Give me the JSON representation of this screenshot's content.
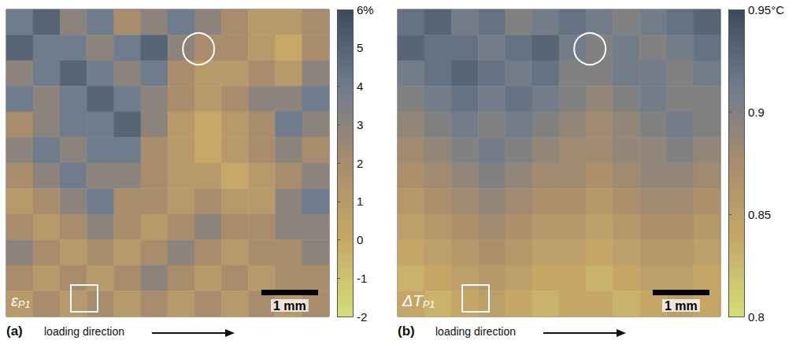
{
  "chart_data": [
    {
      "type": "heatmap",
      "panel": "(a)",
      "symbol": "ε",
      "subscript": "P1",
      "scale_bar": "1 mm",
      "x_label": "loading direction",
      "cells": [
        [
          4,
          5,
          3,
          4,
          2,
          3,
          4,
          3,
          2,
          1,
          1,
          2
        ],
        [
          5,
          4,
          4,
          3,
          4,
          5,
          3,
          2,
          2,
          1,
          0,
          2
        ],
        [
          3,
          4,
          5,
          4,
          3,
          4,
          2,
          1,
          1,
          2,
          1,
          3
        ],
        [
          4,
          3,
          4,
          5,
          4,
          3,
          2,
          1,
          2,
          3,
          3,
          4
        ],
        [
          2,
          3,
          4,
          4,
          5,
          3,
          1,
          0,
          1,
          2,
          4,
          3
        ],
        [
          3,
          4,
          3,
          4,
          4,
          2,
          1,
          0,
          1,
          2,
          3,
          2
        ],
        [
          2,
          3,
          4,
          3,
          3,
          2,
          1,
          1,
          0,
          1,
          2,
          3
        ],
        [
          1,
          2,
          3,
          4,
          2,
          2,
          1,
          2,
          1,
          1,
          3,
          4
        ],
        [
          2,
          1,
          2,
          3,
          2,
          1,
          2,
          3,
          2,
          2,
          3,
          3
        ],
        [
          3,
          2,
          1,
          2,
          1,
          2,
          3,
          2,
          1,
          2,
          2,
          3
        ],
        [
          2,
          1,
          2,
          1,
          2,
          3,
          2,
          1,
          2,
          1,
          2,
          2
        ],
        [
          1,
          2,
          1,
          2,
          1,
          2,
          1,
          2,
          1,
          2,
          1,
          2
        ]
      ],
      "colorbar": {
        "range": [
          -2,
          6
        ],
        "ticks": [
          {
            "value": 6,
            "label": "6%"
          },
          5,
          4,
          3,
          2,
          1,
          0,
          -1,
          -2
        ]
      }
    },
    {
      "type": "heatmap",
      "panel": "(b)",
      "symbol": "ΔT",
      "subscript": "P1",
      "scale_bar": "1 mm",
      "x_label": "loading direction",
      "cells": [
        [
          0.92,
          0.93,
          0.91,
          0.92,
          0.9,
          0.91,
          0.92,
          0.91,
          0.9,
          0.91,
          0.92,
          0.93
        ],
        [
          0.93,
          0.92,
          0.92,
          0.91,
          0.92,
          0.93,
          0.91,
          0.9,
          0.91,
          0.9,
          0.91,
          0.92
        ],
        [
          0.91,
          0.92,
          0.93,
          0.92,
          0.91,
          0.92,
          0.9,
          0.9,
          0.91,
          0.91,
          0.9,
          0.91
        ],
        [
          0.9,
          0.91,
          0.92,
          0.91,
          0.92,
          0.91,
          0.9,
          0.89,
          0.9,
          0.91,
          0.9,
          0.9
        ],
        [
          0.89,
          0.9,
          0.91,
          0.9,
          0.91,
          0.9,
          0.89,
          0.88,
          0.89,
          0.9,
          0.91,
          0.9
        ],
        [
          0.88,
          0.89,
          0.9,
          0.91,
          0.9,
          0.89,
          0.88,
          0.88,
          0.89,
          0.89,
          0.9,
          0.89
        ],
        [
          0.87,
          0.88,
          0.89,
          0.9,
          0.89,
          0.88,
          0.88,
          0.87,
          0.88,
          0.89,
          0.89,
          0.88
        ],
        [
          0.86,
          0.87,
          0.88,
          0.89,
          0.88,
          0.87,
          0.87,
          0.86,
          0.87,
          0.88,
          0.88,
          0.87
        ],
        [
          0.85,
          0.86,
          0.87,
          0.88,
          0.87,
          0.86,
          0.86,
          0.85,
          0.86,
          0.87,
          0.87,
          0.86
        ],
        [
          0.84,
          0.85,
          0.86,
          0.87,
          0.86,
          0.85,
          0.85,
          0.84,
          0.85,
          0.86,
          0.86,
          0.85
        ],
        [
          0.83,
          0.84,
          0.85,
          0.86,
          0.85,
          0.84,
          0.84,
          0.83,
          0.84,
          0.85,
          0.85,
          0.84
        ],
        [
          0.84,
          0.83,
          0.84,
          0.85,
          0.84,
          0.83,
          0.84,
          0.84,
          0.83,
          0.84,
          0.85,
          0.84
        ]
      ],
      "colorbar": {
        "range": [
          0.8,
          0.95
        ],
        "ticks": [
          {
            "value": 0.95,
            "label": "0.95°C"
          },
          0.9,
          0.85,
          0.8
        ]
      }
    }
  ]
}
